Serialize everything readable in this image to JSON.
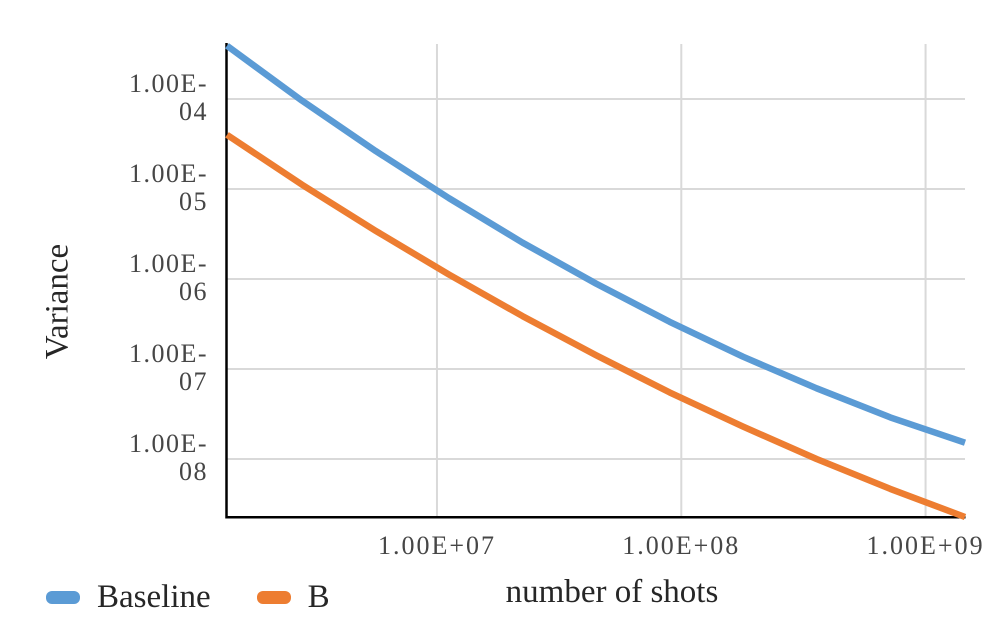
{
  "colors": {
    "background": "#ffffff",
    "gridline": "#d9d9d9",
    "axis_line": "#000000",
    "tick_text": "#464646",
    "title_text": "#262626"
  },
  "chart_data": {
    "type": "line",
    "title": "",
    "xlabel": "number of shots",
    "ylabel": "Variance",
    "x_scale": "log",
    "y_scale": "log",
    "grid": true,
    "legend_position": "bottom-left",
    "x_range": [
      1382000,
      1450000000
    ],
    "y_range": [
      2.27e-09,
      0.000408
    ],
    "x_ticks": [
      {
        "label": "1.00E+07",
        "value": 10000000
      },
      {
        "label": "1.00E+08",
        "value": 100000000
      },
      {
        "label": "1.00E+09",
        "value": 1000000000
      }
    ],
    "y_ticks": [
      {
        "label": "1.00E-04",
        "line1": "1.00E-",
        "line2": "04",
        "value": 0.0001
      },
      {
        "label": "1.00E-05",
        "line1": "1.00E-",
        "line2": "05",
        "value": 1e-05
      },
      {
        "label": "1.00E-06",
        "line1": "1.00E-",
        "line2": "06",
        "value": 1e-06
      },
      {
        "label": "1.00E-07",
        "line1": "1.00E-",
        "line2": "07",
        "value": 1e-07
      },
      {
        "label": "1.00E-08",
        "line1": "1.00E-",
        "line2": "08",
        "value": 1e-08
      }
    ],
    "series": [
      {
        "name": "Baseline",
        "color": "#5B9BD5",
        "x": [
          1382000,
          2800000,
          5600000,
          11200000,
          22400000,
          44800000,
          89600000,
          179000000,
          358000000,
          717000000,
          1450000000
        ],
        "y": [
          0.00039,
          9.6e-05,
          2.65e-05,
          7.9e-06,
          2.54e-06,
          8.9e-07,
          3.35e-07,
          1.37e-07,
          6.1e-08,
          2.9e-08,
          1.52e-08
        ]
      },
      {
        "name": "B",
        "color": "#ED7D31",
        "x": [
          1382000,
          2800000,
          5600000,
          11200000,
          22400000,
          44800000,
          89600000,
          179000000,
          358000000,
          717000000,
          1450000000
        ],
        "y": [
          4e-05,
          1.12e-05,
          3.44e-06,
          1.12e-06,
          3.87e-07,
          1.42e-07,
          5.5e-08,
          2.29e-08,
          1e-08,
          4.66e-09,
          2.27e-09
        ]
      }
    ]
  }
}
